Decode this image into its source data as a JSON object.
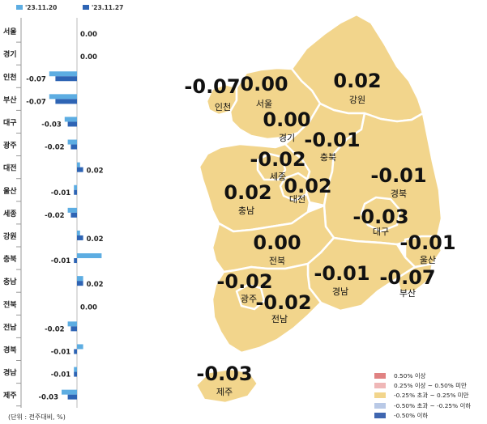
{
  "chart_data": [
    {
      "type": "bar",
      "orientation": "horizontal",
      "categories": [
        "서울",
        "경기",
        "인천",
        "부산",
        "대구",
        "광주",
        "대전",
        "울산",
        "세종",
        "강원",
        "충북",
        "충남",
        "전북",
        "전남",
        "경북",
        "경남",
        "제주"
      ],
      "series": [
        {
          "name": "'23.11.20",
          "color": "#5dade2",
          "values": [
            0.0,
            0.0,
            -0.09,
            -0.09,
            -0.04,
            -0.03,
            0.01,
            -0.01,
            -0.03,
            0.01,
            0.08,
            0.02,
            0.0,
            -0.03,
            0.02,
            -0.01,
            -0.05
          ]
        },
        {
          "name": "'23.11.27",
          "color": "#2e64b4",
          "values": [
            0.0,
            0.0,
            -0.07,
            -0.07,
            -0.03,
            -0.02,
            0.02,
            -0.01,
            -0.02,
            0.02,
            -0.01,
            0.02,
            0.0,
            -0.02,
            -0.01,
            -0.01,
            -0.03
          ]
        }
      ],
      "value_labels": [
        "0.00",
        "0.00",
        "-0.07",
        "-0.07",
        "-0.03",
        "-0.02",
        "0.02",
        "-0.01",
        "-0.02",
        "0.02",
        "-0.01",
        "0.02",
        "0.00",
        "-0.02",
        "-0.01",
        "-0.01",
        "-0.03"
      ],
      "unit_note": "(단위 : 전주대비, %)",
      "legend_position": "top"
    },
    {
      "type": "map",
      "regions": [
        {
          "id": "incheon",
          "name": "인천",
          "value": "-0.07"
        },
        {
          "id": "seoul",
          "name": "서울",
          "value": "0.00"
        },
        {
          "id": "gangwon",
          "name": "강원",
          "value": "0.02"
        },
        {
          "id": "gyeonggi",
          "name": "경기",
          "value": "0.00"
        },
        {
          "id": "chungbuk",
          "name": "충북",
          "value": "-0.01"
        },
        {
          "id": "sejong",
          "name": "세종",
          "value": "-0.02"
        },
        {
          "id": "daejeon",
          "name": "대전",
          "value": "0.02"
        },
        {
          "id": "chungnam",
          "name": "충남",
          "value": "0.02"
        },
        {
          "id": "gyeongbuk",
          "name": "경북",
          "value": "-0.01"
        },
        {
          "id": "daegu",
          "name": "대구",
          "value": "-0.03"
        },
        {
          "id": "ulsan",
          "name": "울산",
          "value": "-0.01"
        },
        {
          "id": "jeonbuk",
          "name": "전북",
          "value": "0.00"
        },
        {
          "id": "gyeongnam",
          "name": "경남",
          "value": "-0.01"
        },
        {
          "id": "busan",
          "name": "부산",
          "value": "-0.07"
        },
        {
          "id": "gwangju",
          "name": "광주",
          "value": "-0.02"
        },
        {
          "id": "jeonnam",
          "name": "전남",
          "value": "-0.02"
        },
        {
          "id": "jeju",
          "name": "제주",
          "value": "-0.03"
        }
      ],
      "legend": [
        {
          "label": "0.50% 이상",
          "color": "#e08282"
        },
        {
          "label": "0.25% 이상 ~ 0.50% 미만",
          "color": "#efb7b7"
        },
        {
          "label": "-0.25% 초과 ~ 0.25% 미만",
          "color": "#f2d58c"
        },
        {
          "label": "-0.50% 초과 ~ -0.25% 이하",
          "color": "#b9c9e6"
        },
        {
          "label": "-0.50% 이하",
          "color": "#3f66b0"
        }
      ],
      "region_fill": "#f2d58c"
    }
  ]
}
